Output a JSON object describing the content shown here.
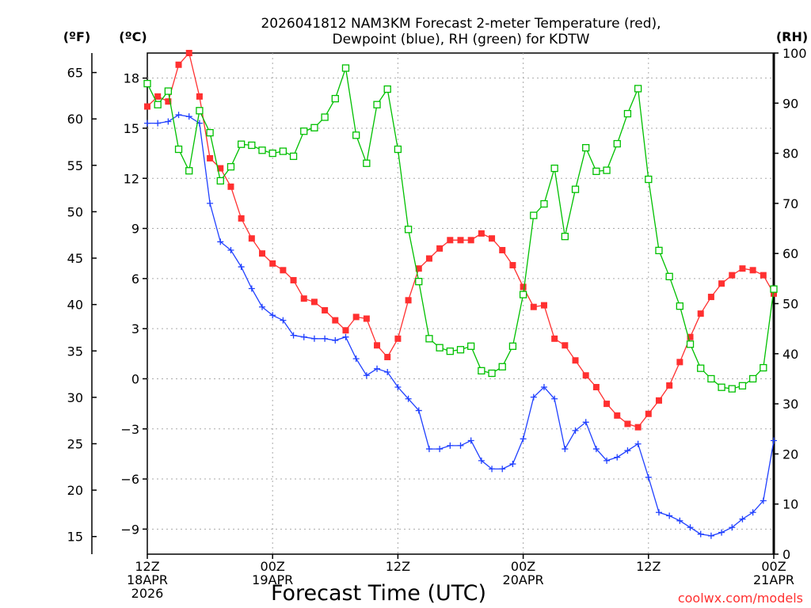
{
  "chart_data": {
    "type": "line",
    "title_line1": "2026041812 NAM3KM Forecast 2-meter Temperature (red),",
    "title_line2": "Dewpoint (blue), RH (green) for KDTW",
    "unit_f": "(ºF)",
    "unit_c": "(ºC)",
    "unit_rh": "(RH)",
    "xlabel": "Forecast Time (UTC)",
    "credit": "coolwx.com/models",
    "x_range_hours": [
      0,
      60
    ],
    "x_ticks": [
      {
        "hour": 0,
        "lines": [
          "12Z",
          "18APR",
          "2026"
        ]
      },
      {
        "hour": 12,
        "lines": [
          "00Z",
          "19APR"
        ]
      },
      {
        "hour": 24,
        "lines": [
          "12Z"
        ]
      },
      {
        "hour": 36,
        "lines": [
          "00Z",
          "20APR"
        ]
      },
      {
        "hour": 48,
        "lines": [
          "12Z"
        ]
      },
      {
        "hour": 60,
        "lines": [
          "00Z",
          "21APR"
        ]
      }
    ],
    "ylim_c": [
      -10.5,
      19.5
    ],
    "c_ticks": [
      18,
      15,
      12,
      9,
      6,
      3,
      0,
      -3,
      -6,
      -9
    ],
    "f_ticks": [
      65,
      60,
      55,
      50,
      45,
      40,
      35,
      30,
      25,
      20,
      15
    ],
    "ylim_rh": [
      0,
      100
    ],
    "rh_ticks": [
      100,
      90,
      80,
      70,
      60,
      50,
      40,
      30,
      20,
      10,
      0
    ],
    "series": [
      {
        "name": "2-meter Temperature",
        "unit": "C",
        "color": "#ff3030",
        "marker": "filled-square",
        "values": [
          16.3,
          16.9,
          16.6,
          18.8,
          19.5,
          16.9,
          13.2,
          12.6,
          11.5,
          9.6,
          8.4,
          7.5,
          6.9,
          6.5,
          5.9,
          4.8,
          4.6,
          4.1,
          3.5,
          2.9,
          3.7,
          3.6,
          2.0,
          1.3,
          2.4,
          4.7,
          6.6,
          7.2,
          7.8,
          8.3,
          8.3,
          8.3,
          8.7,
          8.4,
          7.7,
          6.8,
          5.5,
          4.3,
          4.4,
          2.4,
          2.0,
          1.1,
          0.2,
          -0.5,
          -1.5,
          -2.2,
          -2.7,
          -2.9,
          -2.1,
          -1.3,
          -0.4,
          1.0,
          2.5,
          3.9,
          4.9,
          5.7,
          6.2,
          6.6,
          6.5,
          6.2,
          5.1
        ]
      },
      {
        "name": "Dewpoint",
        "unit": "C",
        "color": "#2040ff",
        "marker": "plus",
        "values": [
          15.3,
          15.3,
          15.4,
          15.8,
          15.7,
          15.3,
          10.5,
          8.2,
          7.7,
          6.7,
          5.4,
          4.3,
          3.8,
          3.5,
          2.6,
          2.5,
          2.4,
          2.4,
          2.3,
          2.5,
          1.2,
          0.2,
          0.6,
          0.4,
          -0.5,
          -1.2,
          -1.9,
          -4.2,
          -4.2,
          -4.0,
          -4.0,
          -3.7,
          -4.9,
          -5.4,
          -5.4,
          -5.1,
          -3.6,
          -1.1,
          -0.5,
          -1.2,
          -4.2,
          -3.1,
          -2.6,
          -4.2,
          -4.9,
          -4.7,
          -4.3,
          -3.9,
          -5.9,
          -8.0,
          -8.2,
          -8.5,
          -8.9,
          -9.3,
          -9.4,
          -9.2,
          -8.9,
          -8.4,
          -8.0,
          -7.3,
          -3.7
        ]
      },
      {
        "name": "RH",
        "unit": "%",
        "color": "#00c000",
        "marker": "open-square",
        "values": [
          93.9,
          89.7,
          92.4,
          80.8,
          76.5,
          88.5,
          84.1,
          74.5,
          77.3,
          81.8,
          81.6,
          80.6,
          80.0,
          80.4,
          79.4,
          84.4,
          85.1,
          87.2,
          90.9,
          97.0,
          83.6,
          78.0,
          89.7,
          92.8,
          80.8,
          64.8,
          54.4,
          43.0,
          41.2,
          40.5,
          40.8,
          41.5,
          36.6,
          36.1,
          37.4,
          41.5,
          51.8,
          67.6,
          69.9,
          77.0,
          63.4,
          72.8,
          81.1,
          76.4,
          76.6,
          81.9,
          87.9,
          92.9,
          74.8,
          60.6,
          55.4,
          49.5,
          41.9,
          37.1,
          35.0,
          33.3,
          33.0,
          33.6,
          35.0,
          37.2,
          52.9
        ]
      }
    ]
  }
}
